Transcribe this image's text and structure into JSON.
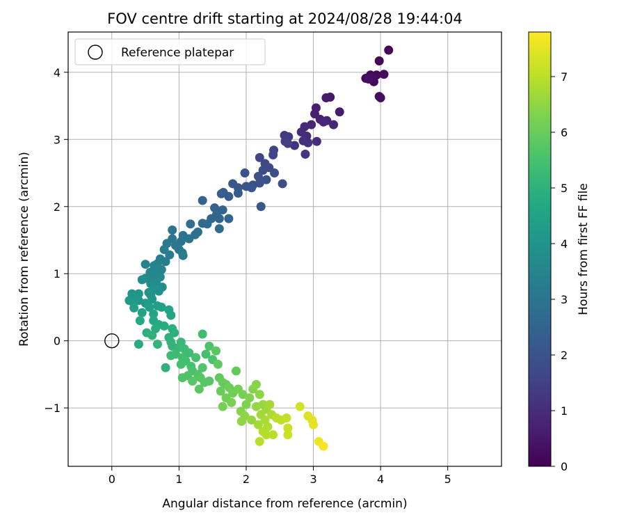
{
  "chart_data": {
    "type": "scatter",
    "title": "FOV centre drift starting at 2024/08/28 19:44:04",
    "xlabel": "Angular distance from reference (arcmin)",
    "ylabel": "Rotation from reference (arcmin)",
    "xlim": [
      -0.65,
      5.8
    ],
    "ylim": [
      -1.87,
      4.6
    ],
    "xticks": [
      "0",
      "1",
      "2",
      "3",
      "4",
      "5"
    ],
    "xtick_values": [
      0,
      1,
      2,
      3,
      4,
      5
    ],
    "yticks": [
      "−1",
      "0",
      "1",
      "2",
      "3",
      "4"
    ],
    "ytick_values": [
      -1,
      0,
      1,
      2,
      3,
      4
    ],
    "grid": true,
    "legend": {
      "position": "top-left",
      "label": "Reference platepar"
    },
    "reference_point": {
      "x": 0,
      "y": 0
    },
    "colorbar": {
      "label": "Hours from first FF file",
      "range": [
        0,
        7.8
      ],
      "tick_values": [
        0,
        1,
        2,
        3,
        4,
        5,
        6,
        7
      ],
      "ticks": [
        "0",
        "1",
        "2",
        "3",
        "4",
        "5",
        "6",
        "7"
      ],
      "colormap": "viridis"
    },
    "points": [
      {
        "x": 4.12,
        "y": 4.33,
        "t": 0.05
      },
      {
        "x": 3.98,
        "y": 4.17,
        "t": 0.08
      },
      {
        "x": 3.78,
        "y": 3.91,
        "t": 0.1
      },
      {
        "x": 3.85,
        "y": 3.96,
        "t": 0.12
      },
      {
        "x": 3.9,
        "y": 3.86,
        "t": 0.15
      },
      {
        "x": 3.94,
        "y": 3.96,
        "t": 0.18
      },
      {
        "x": 4.05,
        "y": 3.97,
        "t": 0.2
      },
      {
        "x": 3.98,
        "y": 3.64,
        "t": 0.22
      },
      {
        "x": 4.0,
        "y": 3.62,
        "t": 0.25
      },
      {
        "x": 3.88,
        "y": 3.93,
        "t": 0.28
      },
      {
        "x": 3.82,
        "y": 3.9,
        "t": 0.3
      },
      {
        "x": 3.25,
        "y": 3.63,
        "t": 0.5
      },
      {
        "x": 3.19,
        "y": 3.62,
        "t": 0.55
      },
      {
        "x": 3.39,
        "y": 3.41,
        "t": 0.6
      },
      {
        "x": 3.04,
        "y": 3.47,
        "t": 0.65
      },
      {
        "x": 3.02,
        "y": 3.38,
        "t": 0.7
      },
      {
        "x": 3.1,
        "y": 3.3,
        "t": 0.75
      },
      {
        "x": 3.2,
        "y": 3.28,
        "t": 0.78
      },
      {
        "x": 3.3,
        "y": 3.22,
        "t": 0.82
      },
      {
        "x": 3.15,
        "y": 3.26,
        "t": 0.85
      },
      {
        "x": 2.97,
        "y": 3.22,
        "t": 0.8
      },
      {
        "x": 2.87,
        "y": 3.19,
        "t": 0.9
      },
      {
        "x": 2.9,
        "y": 3.05,
        "t": 0.95
      },
      {
        "x": 2.82,
        "y": 3.11,
        "t": 1.0
      },
      {
        "x": 2.85,
        "y": 2.98,
        "t": 1.05
      },
      {
        "x": 3.05,
        "y": 2.97,
        "t": 1.0
      },
      {
        "x": 2.92,
        "y": 2.95,
        "t": 1.1
      },
      {
        "x": 2.72,
        "y": 2.91,
        "t": 1.15
      },
      {
        "x": 2.88,
        "y": 2.78,
        "t": 1.2
      },
      {
        "x": 2.57,
        "y": 3.06,
        "t": 1.3
      },
      {
        "x": 2.63,
        "y": 3.04,
        "t": 1.35
      },
      {
        "x": 2.58,
        "y": 2.97,
        "t": 1.4
      },
      {
        "x": 2.62,
        "y": 2.94,
        "t": 1.45
      },
      {
        "x": 2.41,
        "y": 2.84,
        "t": 1.6
      },
      {
        "x": 2.4,
        "y": 2.77,
        "t": 1.6
      },
      {
        "x": 2.2,
        "y": 2.73,
        "t": 1.65
      },
      {
        "x": 2.28,
        "y": 2.64,
        "t": 1.7
      },
      {
        "x": 2.34,
        "y": 2.58,
        "t": 1.75
      },
      {
        "x": 2.25,
        "y": 2.54,
        "t": 1.8
      },
      {
        "x": 2.42,
        "y": 2.5,
        "t": 1.85
      },
      {
        "x": 2.18,
        "y": 2.45,
        "t": 1.9
      },
      {
        "x": 2.3,
        "y": 2.4,
        "t": 1.9
      },
      {
        "x": 2.2,
        "y": 2.35,
        "t": 1.95
      },
      {
        "x": 2.1,
        "y": 2.32,
        "t": 2.0
      },
      {
        "x": 2.0,
        "y": 2.3,
        "t": 2.05
      },
      {
        "x": 1.98,
        "y": 2.5,
        "t": 2.0
      },
      {
        "x": 2.08,
        "y": 2.28,
        "t": 2.05
      },
      {
        "x": 2.54,
        "y": 2.34,
        "t": 1.85
      },
      {
        "x": 2.22,
        "y": 2.0,
        "t": 2.1
      },
      {
        "x": 1.88,
        "y": 2.28,
        "t": 2.1
      },
      {
        "x": 1.8,
        "y": 2.34,
        "t": 2.15
      },
      {
        "x": 1.88,
        "y": 2.2,
        "t": 2.2
      },
      {
        "x": 1.74,
        "y": 2.15,
        "t": 2.25
      },
      {
        "x": 1.66,
        "y": 2.21,
        "t": 2.3
      },
      {
        "x": 1.63,
        "y": 2.19,
        "t": 2.35
      },
      {
        "x": 1.35,
        "y": 2.09,
        "t": 2.4
      },
      {
        "x": 1.53,
        "y": 1.98,
        "t": 2.45
      },
      {
        "x": 1.65,
        "y": 1.95,
        "t": 2.5
      },
      {
        "x": 1.56,
        "y": 1.88,
        "t": 2.55
      },
      {
        "x": 1.6,
        "y": 1.82,
        "t": 2.6
      },
      {
        "x": 1.74,
        "y": 1.82,
        "t": 2.55
      },
      {
        "x": 1.48,
        "y": 1.82,
        "t": 2.6
      },
      {
        "x": 1.6,
        "y": 1.67,
        "t": 2.7
      },
      {
        "x": 1.35,
        "y": 1.75,
        "t": 2.7
      },
      {
        "x": 1.42,
        "y": 1.74,
        "t": 2.75
      },
      {
        "x": 1.17,
        "y": 1.74,
        "t": 2.8
      },
      {
        "x": 1.28,
        "y": 1.62,
        "t": 2.85
      },
      {
        "x": 1.24,
        "y": 1.58,
        "t": 2.9
      },
      {
        "x": 1.15,
        "y": 1.52,
        "t": 2.95
      },
      {
        "x": 1.06,
        "y": 1.57,
        "t": 3.0
      },
      {
        "x": 0.9,
        "y": 1.65,
        "t": 3.05
      },
      {
        "x": 1.03,
        "y": 1.48,
        "t": 3.0
      },
      {
        "x": 0.95,
        "y": 1.42,
        "t": 3.1
      },
      {
        "x": 1.0,
        "y": 1.36,
        "t": 3.1
      },
      {
        "x": 1.05,
        "y": 1.31,
        "t": 3.15
      },
      {
        "x": 0.82,
        "y": 1.45,
        "t": 3.15
      },
      {
        "x": 0.9,
        "y": 1.52,
        "t": 3.1
      },
      {
        "x": 0.78,
        "y": 1.36,
        "t": 3.2
      },
      {
        "x": 0.86,
        "y": 1.28,
        "t": 3.25
      },
      {
        "x": 1.06,
        "y": 1.27,
        "t": 3.2
      },
      {
        "x": 0.72,
        "y": 1.22,
        "t": 3.3
      },
      {
        "x": 0.8,
        "y": 1.18,
        "t": 3.35
      },
      {
        "x": 0.68,
        "y": 1.15,
        "t": 3.4
      },
      {
        "x": 0.5,
        "y": 1.14,
        "t": 3.45
      },
      {
        "x": 0.63,
        "y": 1.12,
        "t": 3.45
      },
      {
        "x": 0.74,
        "y": 1.06,
        "t": 3.5
      },
      {
        "x": 0.57,
        "y": 1.02,
        "t": 3.55
      },
      {
        "x": 0.66,
        "y": 1.0,
        "t": 3.6
      },
      {
        "x": 0.6,
        "y": 0.95,
        "t": 3.6
      },
      {
        "x": 0.72,
        "y": 0.95,
        "t": 3.65
      },
      {
        "x": 0.5,
        "y": 0.93,
        "t": 3.7
      },
      {
        "x": 0.45,
        "y": 0.91,
        "t": 3.75
      },
      {
        "x": 0.66,
        "y": 0.88,
        "t": 3.7
      },
      {
        "x": 0.58,
        "y": 0.85,
        "t": 3.8
      },
      {
        "x": 0.75,
        "y": 0.8,
        "t": 3.85
      },
      {
        "x": 0.63,
        "y": 0.77,
        "t": 3.9
      },
      {
        "x": 0.7,
        "y": 0.74,
        "t": 3.9
      },
      {
        "x": 0.55,
        "y": 0.72,
        "t": 3.95
      },
      {
        "x": 0.58,
        "y": 0.68,
        "t": 4.0
      },
      {
        "x": 0.4,
        "y": 0.7,
        "t": 4.0
      },
      {
        "x": 0.6,
        "y": 0.62,
        "t": 4.1
      },
      {
        "x": 0.3,
        "y": 0.7,
        "t": 4.05
      },
      {
        "x": 0.34,
        "y": 0.64,
        "t": 4.1
      },
      {
        "x": 0.4,
        "y": 0.6,
        "t": 4.15
      },
      {
        "x": 0.32,
        "y": 0.57,
        "t": 4.2
      },
      {
        "x": 0.26,
        "y": 0.6,
        "t": 4.25
      },
      {
        "x": 0.5,
        "y": 0.56,
        "t": 4.25
      },
      {
        "x": 0.56,
        "y": 0.5,
        "t": 4.35
      },
      {
        "x": 0.68,
        "y": 0.52,
        "t": 4.3
      },
      {
        "x": 0.33,
        "y": 0.49,
        "t": 4.4
      },
      {
        "x": 0.45,
        "y": 0.42,
        "t": 4.5
      },
      {
        "x": 0.74,
        "y": 0.5,
        "t": 4.45
      },
      {
        "x": 0.85,
        "y": 0.46,
        "t": 4.5
      },
      {
        "x": 0.88,
        "y": 0.38,
        "t": 4.55
      },
      {
        "x": 0.62,
        "y": 0.4,
        "t": 4.55
      },
      {
        "x": 0.42,
        "y": 0.3,
        "t": 4.7
      },
      {
        "x": 0.62,
        "y": 0.3,
        "t": 4.65
      },
      {
        "x": 0.7,
        "y": 0.24,
        "t": 4.75
      },
      {
        "x": 0.78,
        "y": 0.22,
        "t": 4.8
      },
      {
        "x": 0.65,
        "y": 0.18,
        "t": 4.85
      },
      {
        "x": 0.52,
        "y": 0.12,
        "t": 4.9
      },
      {
        "x": 0.9,
        "y": 0.18,
        "t": 4.9
      },
      {
        "x": 0.93,
        "y": 0.12,
        "t": 4.95
      },
      {
        "x": 0.85,
        "y": 0.05,
        "t": 5.0
      },
      {
        "x": 0.6,
        "y": 0.08,
        "t": 5.0
      },
      {
        "x": 0.88,
        "y": -0.02,
        "t": 5.05
      },
      {
        "x": 0.4,
        "y": -0.05,
        "t": 4.8
      },
      {
        "x": 0.68,
        "y": -0.05,
        "t": 5.1
      },
      {
        "x": 0.9,
        "y": -0.08,
        "t": 5.1
      },
      {
        "x": 1.03,
        "y": -0.02,
        "t": 5.2
      },
      {
        "x": 1.0,
        "y": -0.1,
        "t": 5.2
      },
      {
        "x": 0.95,
        "y": -0.2,
        "t": 5.25
      },
      {
        "x": 0.88,
        "y": -0.22,
        "t": 5.3
      },
      {
        "x": 1.08,
        "y": -0.12,
        "t": 5.3
      },
      {
        "x": 1.15,
        "y": -0.18,
        "t": 5.35
      },
      {
        "x": 1.05,
        "y": -0.25,
        "t": 5.4
      },
      {
        "x": 1.1,
        "y": -0.3,
        "t": 5.4
      },
      {
        "x": 1.03,
        "y": -0.35,
        "t": 5.45
      },
      {
        "x": 0.8,
        "y": -0.4,
        "t": 5.0
      },
      {
        "x": 1.18,
        "y": -0.38,
        "t": 5.5
      },
      {
        "x": 1.25,
        "y": -0.25,
        "t": 5.5
      },
      {
        "x": 1.2,
        "y": -0.45,
        "t": 5.55
      },
      {
        "x": 1.13,
        "y": -0.52,
        "t": 5.6
      },
      {
        "x": 1.05,
        "y": -0.55,
        "t": 5.6
      },
      {
        "x": 1.28,
        "y": -0.5,
        "t": 5.65
      },
      {
        "x": 1.35,
        "y": -0.4,
        "t": 5.65
      },
      {
        "x": 1.32,
        "y": -0.55,
        "t": 5.7
      },
      {
        "x": 1.2,
        "y": -0.6,
        "t": 5.7
      },
      {
        "x": 1.38,
        "y": -0.62,
        "t": 5.75
      },
      {
        "x": 1.45,
        "y": -0.6,
        "t": 5.75
      },
      {
        "x": 1.3,
        "y": -0.72,
        "t": 5.8
      },
      {
        "x": 1.5,
        "y": -0.28,
        "t": 5.55
      },
      {
        "x": 1.4,
        "y": -0.2,
        "t": 5.45
      },
      {
        "x": 1.35,
        "y": 0.1,
        "t": 5.4
      },
      {
        "x": 1.45,
        "y": -0.08,
        "t": 5.6
      },
      {
        "x": 1.55,
        "y": -0.15,
        "t": 5.8
      },
      {
        "x": 1.58,
        "y": -0.35,
        "t": 5.85
      },
      {
        "x": 1.6,
        "y": -0.55,
        "t": 5.9
      },
      {
        "x": 1.65,
        "y": -0.62,
        "t": 5.95
      },
      {
        "x": 1.7,
        "y": -0.65,
        "t": 6.0
      },
      {
        "x": 1.62,
        "y": -0.75,
        "t": 6.0
      },
      {
        "x": 1.75,
        "y": -0.7,
        "t": 6.05
      },
      {
        "x": 1.8,
        "y": -0.78,
        "t": 6.1
      },
      {
        "x": 1.7,
        "y": -0.85,
        "t": 6.1
      },
      {
        "x": 1.85,
        "y": -0.45,
        "t": 5.9
      },
      {
        "x": 1.88,
        "y": -0.72,
        "t": 6.15
      },
      {
        "x": 1.95,
        "y": -0.8,
        "t": 6.2
      },
      {
        "x": 1.78,
        "y": -0.92,
        "t": 6.2
      },
      {
        "x": 1.65,
        "y": -0.98,
        "t": 6.15
      },
      {
        "x": 2.05,
        "y": -0.85,
        "t": 6.3
      },
      {
        "x": 2.0,
        "y": -0.95,
        "t": 6.3
      },
      {
        "x": 1.92,
        "y": -1.05,
        "t": 6.35
      },
      {
        "x": 2.1,
        "y": -0.72,
        "t": 6.35
      },
      {
        "x": 2.15,
        "y": -0.65,
        "t": 6.4
      },
      {
        "x": 2.2,
        "y": -0.8,
        "t": 6.45
      },
      {
        "x": 1.98,
        "y": -1.12,
        "t": 6.45
      },
      {
        "x": 1.93,
        "y": -1.2,
        "t": 6.5
      },
      {
        "x": 2.08,
        "y": -1.18,
        "t": 6.55
      },
      {
        "x": 2.15,
        "y": -0.98,
        "t": 6.55
      },
      {
        "x": 2.25,
        "y": -0.95,
        "t": 6.6
      },
      {
        "x": 2.3,
        "y": -1.02,
        "t": 6.65
      },
      {
        "x": 2.22,
        "y": -1.1,
        "t": 6.7
      },
      {
        "x": 2.35,
        "y": -0.95,
        "t": 6.7
      },
      {
        "x": 2.18,
        "y": -1.25,
        "t": 6.75
      },
      {
        "x": 2.28,
        "y": -1.18,
        "t": 6.8
      },
      {
        "x": 2.38,
        "y": -1.1,
        "t": 6.8
      },
      {
        "x": 2.32,
        "y": -1.28,
        "t": 6.85
      },
      {
        "x": 2.25,
        "y": -1.35,
        "t": 6.9
      },
      {
        "x": 2.2,
        "y": -1.5,
        "t": 6.95
      },
      {
        "x": 2.3,
        "y": -1.4,
        "t": 6.9
      },
      {
        "x": 2.4,
        "y": -1.4,
        "t": 6.95
      },
      {
        "x": 2.45,
        "y": -1.15,
        "t": 7.0
      },
      {
        "x": 2.52,
        "y": -1.18,
        "t": 7.05
      },
      {
        "x": 2.6,
        "y": -1.15,
        "t": 7.1
      },
      {
        "x": 2.62,
        "y": -1.3,
        "t": 7.15
      },
      {
        "x": 2.62,
        "y": -1.4,
        "t": 7.2
      },
      {
        "x": 2.8,
        "y": -0.98,
        "t": 7.3
      },
      {
        "x": 2.92,
        "y": -1.12,
        "t": 7.4
      },
      {
        "x": 2.98,
        "y": -1.18,
        "t": 7.45
      },
      {
        "x": 3.0,
        "y": -1.25,
        "t": 7.5
      },
      {
        "x": 3.08,
        "y": -1.5,
        "t": 7.6
      },
      {
        "x": 3.15,
        "y": -1.57,
        "t": 7.7
      }
    ]
  }
}
